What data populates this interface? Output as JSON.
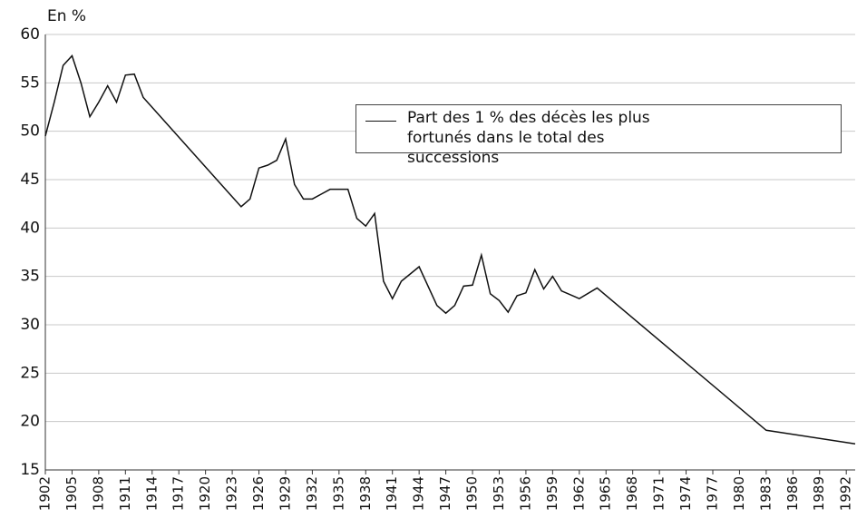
{
  "chart_data": {
    "type": "line",
    "y_label": "En %",
    "x": [
      1902,
      1903,
      1904,
      1905,
      1906,
      1907,
      1908,
      1909,
      1910,
      1911,
      1912,
      1913,
      1924,
      1925,
      1926,
      1927,
      1928,
      1929,
      1930,
      1931,
      1932,
      1933,
      1934,
      1935,
      1936,
      1937,
      1938,
      1939,
      1940,
      1941,
      1942,
      1944,
      1946,
      1947,
      1948,
      1949,
      1950,
      1951,
      1952,
      1953,
      1954,
      1955,
      1956,
      1957,
      1958,
      1959,
      1960,
      1962,
      1964,
      1983,
      1993
    ],
    "series": [
      {
        "name": "Part des 1 % des décès les plus fortunés dans le total des successions",
        "color": "#111111",
        "values": [
          49.5,
          53,
          56.8,
          57.8,
          55,
          51.5,
          53,
          54.7,
          53,
          55.8,
          55.9,
          53.5,
          42.2,
          43,
          46.2,
          46.5,
          47,
          49.2,
          44.5,
          43,
          43,
          43.5,
          44,
          44,
          44,
          41,
          40.2,
          41.5,
          34.5,
          32.7,
          34.5,
          36,
          32,
          31.2,
          32,
          34,
          34.1,
          37.2,
          33.2,
          32.5,
          31.3,
          33,
          33.3,
          35.7,
          33.7,
          35,
          33.5,
          32.7,
          33.8,
          19.1,
          17.7
        ]
      }
    ],
    "xlim": [
      1902,
      1993
    ],
    "xticks": [
      1902,
      1905,
      1908,
      1911,
      1914,
      1917,
      1920,
      1923,
      1926,
      1929,
      1932,
      1935,
      1938,
      1941,
      1944,
      1947,
      1950,
      1953,
      1956,
      1959,
      1962,
      1965,
      1968,
      1971,
      1974,
      1977,
      1980,
      1983,
      1986,
      1989,
      1992
    ],
    "ylim": [
      15,
      60
    ],
    "yticks": [
      15,
      20,
      25,
      30,
      35,
      40,
      45,
      50,
      55,
      60
    ],
    "grid": true,
    "legend": "upper right"
  }
}
